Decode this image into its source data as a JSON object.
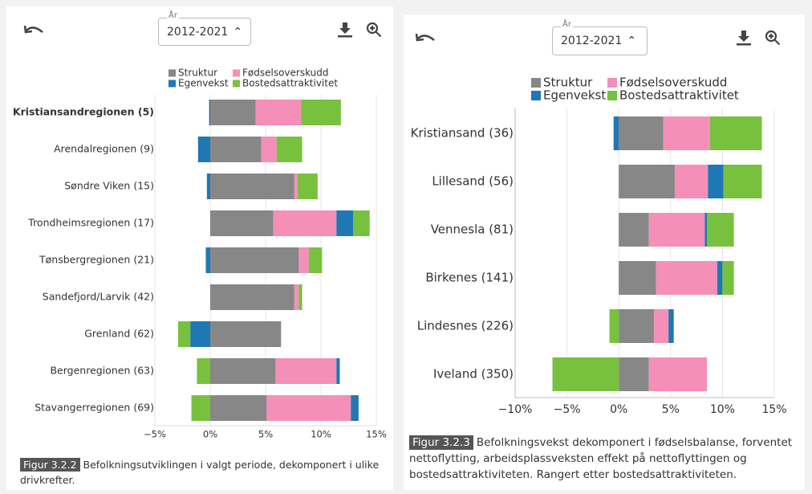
{
  "panels": [
    {
      "year_label": "År",
      "period": "2012-2021",
      "figure": "Figur 3.2.2",
      "caption": "Befolkningsutviklingen i valgt periode, dekomponert i ulike drivkrefter."
    },
    {
      "year_label": "År",
      "period": "2012-2021",
      "figure": "Figur 3.2.3",
      "caption": "Befolkningsvekst dekomponert i fødselsbalanse, forventet nettoflytting, arbeidsplassveksten effekt på nettoflyttingen og bostedsattraktiviteten. Rangert etter bostedsattraktiviteten."
    }
  ],
  "chart_data": [
    {
      "type": "stacked-barh",
      "categories": [
        "Kristiansandregionen (5)",
        "Arendalregionen (9)",
        "Søndre Viken (15)",
        "Trondheimsregionen (17)",
        "Tønsbergregionen (21)",
        "Sandefjord/Larvik (42)",
        "Grenland (62)",
        "Bergenregionen (63)",
        "Stavangerregionen (69)"
      ],
      "highlight": 0,
      "series": [
        {
          "name": "Struktur",
          "color": "#878787",
          "values": [
            4.1,
            4.6,
            7.6,
            5.7,
            8.0,
            7.6,
            6.4,
            5.9,
            5.1
          ]
        },
        {
          "name": "Fødselsoverskudd",
          "color": "#f48fb8",
          "values": [
            4.1,
            1.4,
            0.3,
            5.7,
            0.9,
            0.4,
            0,
            5.5,
            7.6
          ]
        },
        {
          "name": "Egenvekst",
          "color": "#1f78b4",
          "values": [
            -0.1,
            -1.1,
            -0.3,
            1.5,
            -0.4,
            0,
            -1.8,
            0.3,
            0.7
          ]
        },
        {
          "name": "Bostedsattraktivitet",
          "color": "#77c13f",
          "values": [
            3.6,
            2.3,
            1.8,
            1.5,
            1.2,
            0.3,
            -1.1,
            -1.2,
            -1.7
          ]
        }
      ],
      "xlim": [
        -5,
        15
      ],
      "xticks": [
        {
          "value": -5,
          "label": "−5%"
        },
        {
          "value": 0,
          "label": "0%"
        },
        {
          "value": 5,
          "label": "5%"
        },
        {
          "value": 10,
          "label": "10%"
        },
        {
          "value": 15,
          "label": "15%"
        }
      ],
      "grid": true
    },
    {
      "type": "stacked-barh",
      "categories": [
        "Kristiansand (36)",
        "Lillesand (56)",
        "Vennesla (81)",
        "Birkenes (141)",
        "Lindesnes (226)",
        "Iveland (350)"
      ],
      "series": [
        {
          "name": "Struktur",
          "color": "#878787",
          "values": [
            4.3,
            5.4,
            2.9,
            3.6,
            3.4,
            2.9
          ]
        },
        {
          "name": "Fødselsoverskudd",
          "color": "#f48fb8",
          "values": [
            4.5,
            3.2,
            5.4,
            5.9,
            1.4,
            5.6
          ]
        },
        {
          "name": "Egenvekst",
          "color": "#1f78b4",
          "values": [
            -0.5,
            1.5,
            0.2,
            0.5,
            0.5,
            0
          ]
        },
        {
          "name": "Bostedsattraktivitet",
          "color": "#77c13f",
          "values": [
            5.0,
            3.7,
            2.6,
            1.1,
            -0.9,
            -6.4
          ]
        }
      ],
      "xlim": [
        -10,
        15
      ],
      "xticks": [
        {
          "value": -10,
          "label": "−10%"
        },
        {
          "value": -5,
          "label": "−5%"
        },
        {
          "value": 0,
          "label": "0%"
        },
        {
          "value": 5,
          "label": "5%"
        },
        {
          "value": 10,
          "label": "10%"
        },
        {
          "value": 15,
          "label": "15%"
        }
      ],
      "grid": true
    }
  ]
}
